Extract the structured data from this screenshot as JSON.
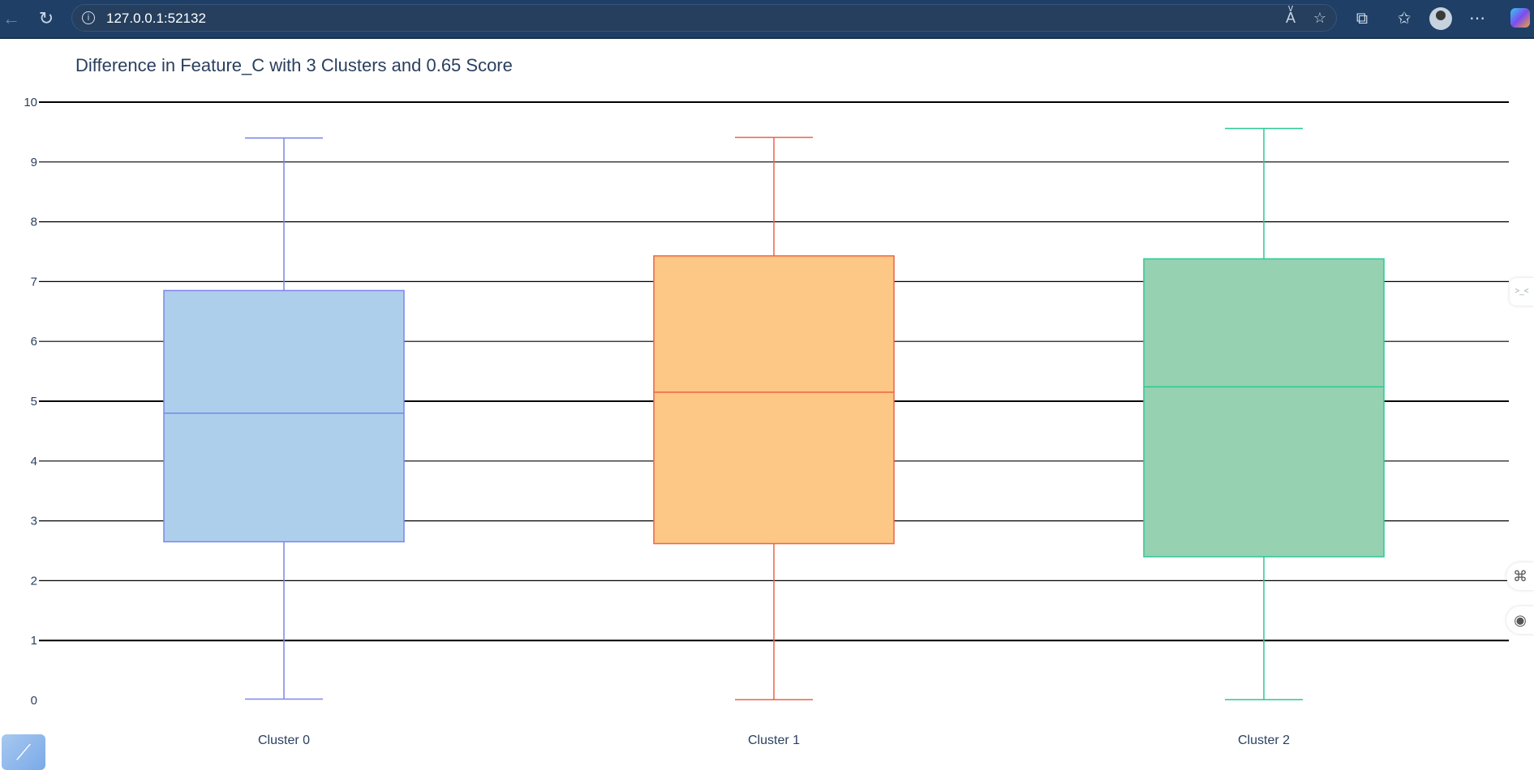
{
  "browser": {
    "url": "127.0.0.1:52132",
    "back_icon": "back-arrow-icon",
    "reload_icon": "reload-icon",
    "info_icon": "info-icon",
    "read_aloud_icon": "read-aloud-icon",
    "favorite_icon": "star-icon",
    "extensions_icon": "puzzle-icon",
    "favorites_icon": "favorites-icon",
    "more_icon": "more-icon"
  },
  "colors": {
    "cluster0_fill": "#aecfeb",
    "cluster0_line": "#7b86ec",
    "cluster1_fill": "#fdc785",
    "cluster1_line": "#ec6447",
    "cluster2_fill": "#96d1b2",
    "cluster2_line": "#2cca93"
  },
  "chart_data": {
    "type": "box",
    "title": "Difference in Feature_C with 3 Clusters and 0.65 Score",
    "xlabel": "",
    "ylabel": "",
    "ylim": [
      0,
      10
    ],
    "yticks": [
      "0",
      "1",
      "2",
      "3",
      "4",
      "5",
      "6",
      "7",
      "8",
      "9",
      "10"
    ],
    "grid": true,
    "categories": [
      "Cluster 0",
      "Cluster 1",
      "Cluster 2"
    ],
    "boxes": [
      {
        "category": "Cluster 0",
        "min": 0.02,
        "q1": 2.65,
        "median": 4.8,
        "q3": 6.85,
        "max": 9.4
      },
      {
        "category": "Cluster 1",
        "min": 0.01,
        "q1": 2.62,
        "median": 5.15,
        "q3": 7.43,
        "max": 9.41
      },
      {
        "category": "Cluster 2",
        "min": 0.01,
        "q1": 2.4,
        "median": 5.24,
        "q3": 7.38,
        "max": 9.56
      }
    ]
  }
}
